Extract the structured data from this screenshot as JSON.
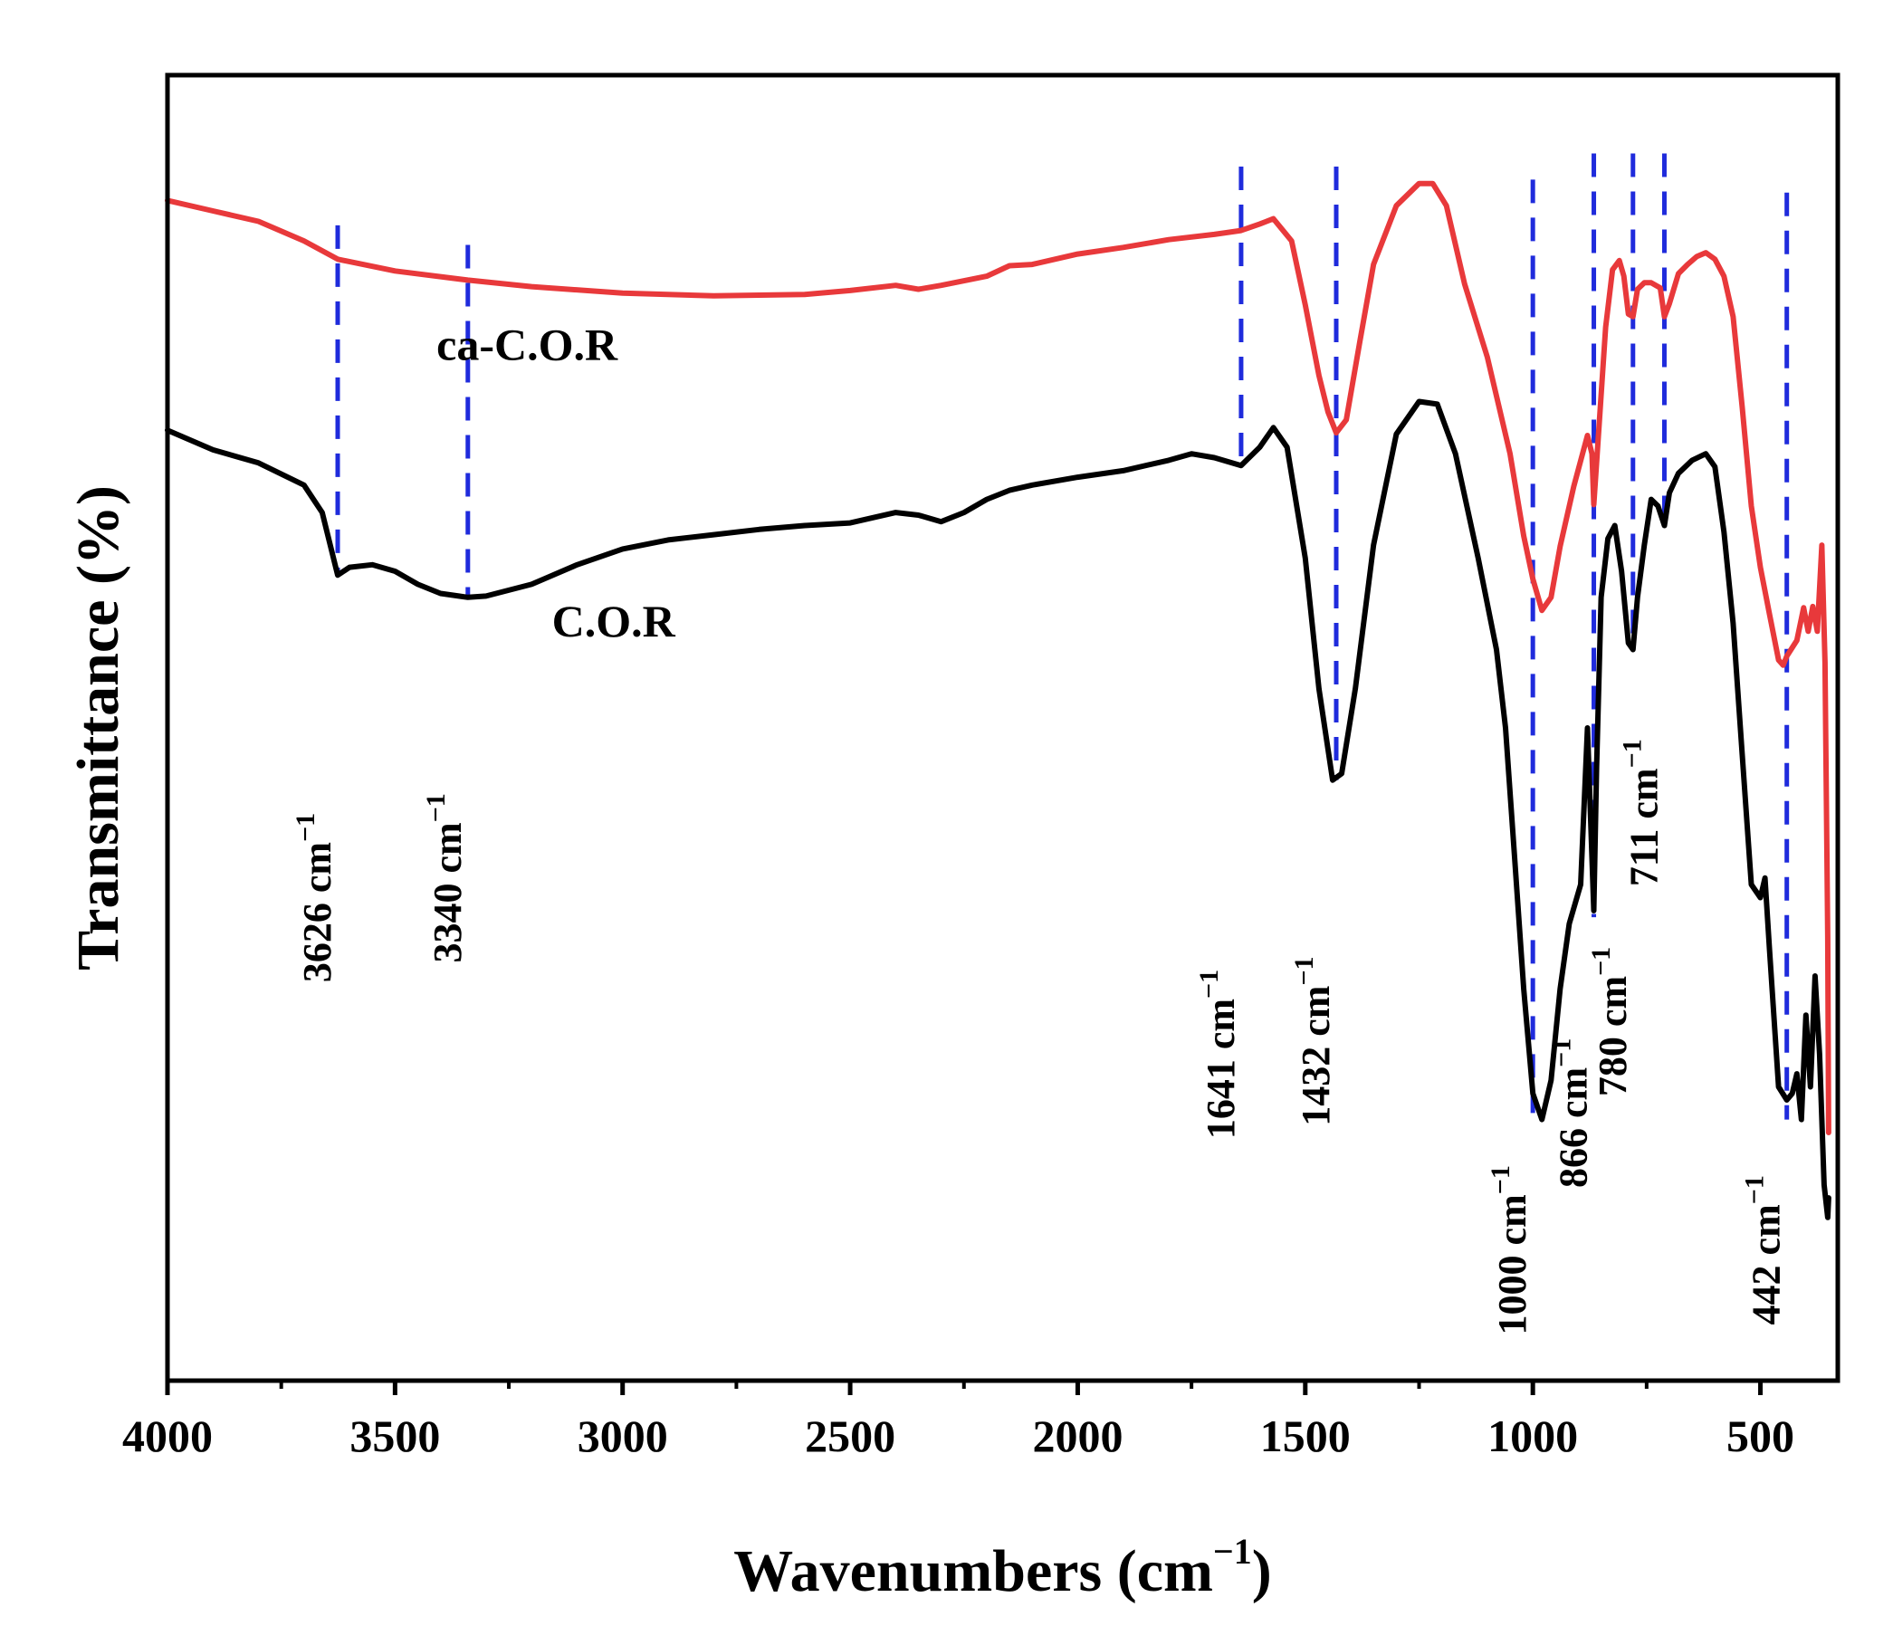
{
  "chart_data": {
    "type": "line",
    "xlabel": "Wavenumbers (cm",
    "xlabel_sup": "−1",
    "xlabel_end": ")",
    "ylabel": "Transmittance (%)",
    "xlim": [
      4000,
      330
    ],
    "ylim": [
      0,
      100
    ],
    "x_ticks": [
      4000,
      3500,
      3000,
      2500,
      2000,
      1500,
      1000,
      500
    ],
    "y_ticks_shown": false,
    "grid": false,
    "legend": "none",
    "series": [
      {
        "name": "ca-C.O.R",
        "color": "#e8393b",
        "points": [
          [
            4000,
            90.4
          ],
          [
            3900,
            89.6
          ],
          [
            3800,
            88.8
          ],
          [
            3700,
            87.3
          ],
          [
            3626,
            85.9
          ],
          [
            3500,
            85.0
          ],
          [
            3340,
            84.3
          ],
          [
            3200,
            83.8
          ],
          [
            3000,
            83.3
          ],
          [
            2800,
            83.1
          ],
          [
            2600,
            83.2
          ],
          [
            2500,
            83.5
          ],
          [
            2400,
            83.9
          ],
          [
            2350,
            83.6
          ],
          [
            2300,
            83.9
          ],
          [
            2200,
            84.6
          ],
          [
            2150,
            85.4
          ],
          [
            2100,
            85.5
          ],
          [
            2000,
            86.3
          ],
          [
            1900,
            86.8
          ],
          [
            1800,
            87.4
          ],
          [
            1700,
            87.8
          ],
          [
            1641,
            88.1
          ],
          [
            1600,
            88.6
          ],
          [
            1570,
            89.0
          ],
          [
            1530,
            87.3
          ],
          [
            1500,
            82.4
          ],
          [
            1470,
            77.0
          ],
          [
            1450,
            74.2
          ],
          [
            1432,
            72.6
          ],
          [
            1410,
            73.6
          ],
          [
            1380,
            79.6
          ],
          [
            1350,
            85.5
          ],
          [
            1300,
            90.0
          ],
          [
            1250,
            91.7
          ],
          [
            1220,
            91.7
          ],
          [
            1190,
            90.0
          ],
          [
            1150,
            84.0
          ],
          [
            1100,
            78.4
          ],
          [
            1050,
            71.0
          ],
          [
            1020,
            64.7
          ],
          [
            1000,
            61.4
          ],
          [
            980,
            59.0
          ],
          [
            960,
            60.0
          ],
          [
            940,
            63.9
          ],
          [
            910,
            68.5
          ],
          [
            880,
            72.4
          ],
          [
            870,
            71.0
          ],
          [
            866,
            67.1
          ],
          [
            855,
            72.9
          ],
          [
            840,
            80.7
          ],
          [
            825,
            85.1
          ],
          [
            810,
            85.8
          ],
          [
            800,
            84.6
          ],
          [
            790,
            81.7
          ],
          [
            780,
            81.5
          ],
          [
            770,
            83.6
          ],
          [
            755,
            84.1
          ],
          [
            740,
            84.1
          ],
          [
            720,
            83.7
          ],
          [
            711,
            81.5
          ],
          [
            700,
            82.5
          ],
          [
            680,
            84.8
          ],
          [
            660,
            85.5
          ],
          [
            640,
            86.1
          ],
          [
            620,
            86.4
          ],
          [
            600,
            85.9
          ],
          [
            580,
            84.6
          ],
          [
            560,
            81.5
          ],
          [
            540,
            74.6
          ],
          [
            520,
            67.0
          ],
          [
            500,
            62.3
          ],
          [
            480,
            58.7
          ],
          [
            460,
            55.2
          ],
          [
            450,
            54.8
          ],
          [
            442,
            55.5
          ],
          [
            420,
            56.7
          ],
          [
            405,
            59.2
          ],
          [
            395,
            57.4
          ],
          [
            385,
            59.3
          ],
          [
            375,
            57.4
          ],
          [
            365,
            64.0
          ],
          [
            358,
            55.0
          ],
          [
            352,
            34.0
          ],
          [
            350,
            19.0
          ]
        ]
      },
      {
        "name": "C.O.R",
        "color": "#000000",
        "points": [
          [
            4000,
            72.8
          ],
          [
            3900,
            71.3
          ],
          [
            3800,
            70.3
          ],
          [
            3700,
            68.6
          ],
          [
            3660,
            66.5
          ],
          [
            3626,
            61.7
          ],
          [
            3600,
            62.3
          ],
          [
            3550,
            62.5
          ],
          [
            3500,
            62.0
          ],
          [
            3450,
            61.0
          ],
          [
            3400,
            60.3
          ],
          [
            3340,
            60.0
          ],
          [
            3300,
            60.1
          ],
          [
            3200,
            61.0
          ],
          [
            3100,
            62.5
          ],
          [
            3000,
            63.7
          ],
          [
            2900,
            64.4
          ],
          [
            2800,
            64.8
          ],
          [
            2700,
            65.2
          ],
          [
            2600,
            65.5
          ],
          [
            2500,
            65.7
          ],
          [
            2400,
            66.5
          ],
          [
            2350,
            66.3
          ],
          [
            2300,
            65.8
          ],
          [
            2250,
            66.5
          ],
          [
            2200,
            67.5
          ],
          [
            2150,
            68.2
          ],
          [
            2100,
            68.6
          ],
          [
            2000,
            69.2
          ],
          [
            1900,
            69.7
          ],
          [
            1800,
            70.5
          ],
          [
            1750,
            71.0
          ],
          [
            1700,
            70.7
          ],
          [
            1641,
            70.1
          ],
          [
            1600,
            71.5
          ],
          [
            1570,
            73.0
          ],
          [
            1540,
            71.5
          ],
          [
            1500,
            63.0
          ],
          [
            1470,
            53.0
          ],
          [
            1440,
            46.0
          ],
          [
            1420,
            46.5
          ],
          [
            1390,
            53.0
          ],
          [
            1350,
            64.0
          ],
          [
            1300,
            72.5
          ],
          [
            1250,
            75.0
          ],
          [
            1210,
            74.8
          ],
          [
            1170,
            71.0
          ],
          [
            1120,
            63.0
          ],
          [
            1080,
            56.0
          ],
          [
            1060,
            50.0
          ],
          [
            1040,
            40.0
          ],
          [
            1020,
            30.0
          ],
          [
            1000,
            22.0
          ],
          [
            980,
            20.0
          ],
          [
            960,
            23.0
          ],
          [
            940,
            30.0
          ],
          [
            920,
            35.0
          ],
          [
            895,
            38.0
          ],
          [
            880,
            50.0
          ],
          [
            872,
            42.0
          ],
          [
            866,
            36.0
          ],
          [
            860,
            47.0
          ],
          [
            850,
            60.0
          ],
          [
            835,
            64.5
          ],
          [
            820,
            65.5
          ],
          [
            805,
            62.0
          ],
          [
            790,
            56.5
          ],
          [
            780,
            56.0
          ],
          [
            770,
            60.0
          ],
          [
            755,
            64.0
          ],
          [
            740,
            67.5
          ],
          [
            725,
            67.0
          ],
          [
            711,
            65.5
          ],
          [
            700,
            68.0
          ],
          [
            680,
            69.5
          ],
          [
            650,
            70.5
          ],
          [
            620,
            71.0
          ],
          [
            600,
            70.0
          ],
          [
            580,
            65.0
          ],
          [
            560,
            58.0
          ],
          [
            540,
            48.0
          ],
          [
            520,
            38.0
          ],
          [
            500,
            37.0
          ],
          [
            490,
            38.5
          ],
          [
            480,
            33.0
          ],
          [
            460,
            22.5
          ],
          [
            442,
            21.5
          ],
          [
            430,
            22.0
          ],
          [
            420,
            23.5
          ],
          [
            410,
            20.0
          ],
          [
            400,
            28.0
          ],
          [
            390,
            22.5
          ],
          [
            380,
            31.0
          ],
          [
            370,
            25.0
          ],
          [
            360,
            15.0
          ],
          [
            352,
            12.5
          ],
          [
            350,
            14.0
          ]
        ]
      }
    ],
    "series_labels": [
      {
        "text": "ca-C.O.R",
        "x": 3210,
        "y": 78.2
      },
      {
        "text": "C.O.R",
        "x": 3020,
        "y": 57.0
      }
    ],
    "peaks": [
      {
        "wavenumber": 3626,
        "label": "3626 cm",
        "top": 88.5,
        "bottom": 61.7,
        "label_y": 37.0
      },
      {
        "wavenumber": 3340,
        "label": "3340 cm",
        "top": 87.0,
        "bottom": 60.0,
        "label_y": 38.5
      },
      {
        "wavenumber": 1641,
        "label": "1641 cm",
        "top": 93.0,
        "bottom": 70.1,
        "label_y": 25.0
      },
      {
        "wavenumber": 1432,
        "label": "1432 cm",
        "top": 93.0,
        "bottom": 46.0,
        "label_y": 26.0
      },
      {
        "wavenumber": 1000,
        "label": "1000 cm",
        "top": 92.0,
        "bottom": 20.5,
        "label_y": 10.0
      },
      {
        "wavenumber": 866,
        "label": "866 cm",
        "top": 94.0,
        "bottom": 35.5,
        "label_y": 20.5
      },
      {
        "wavenumber": 780,
        "label": "780 cm",
        "top": 94.0,
        "bottom": 56.0,
        "label_y": 27.5
      },
      {
        "wavenumber": 711,
        "label": "711 cm",
        "top": 94.0,
        "bottom": 65.5,
        "label_y": 43.5
      },
      {
        "wavenumber": 442,
        "label": "442 cm",
        "top": 91.0,
        "bottom": 20.0,
        "label_y": 10.0
      }
    ],
    "peak_unit_sup": "−1",
    "peak_line_color": "#1f2bdc"
  }
}
